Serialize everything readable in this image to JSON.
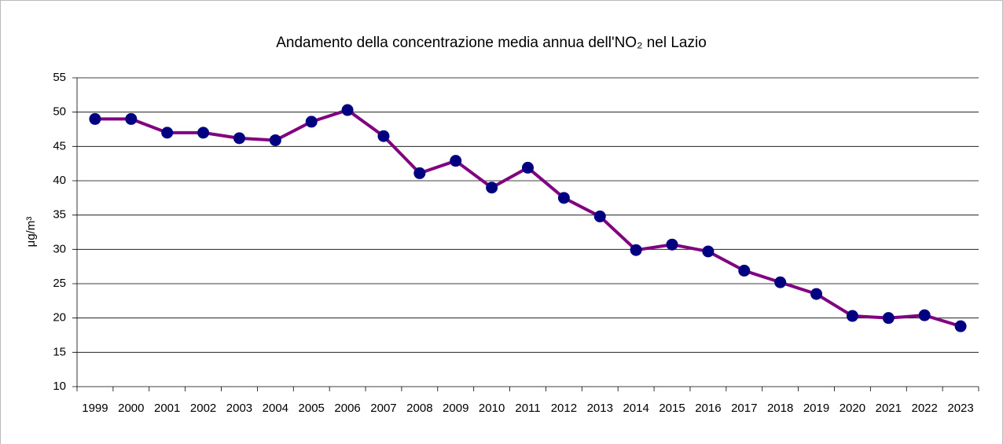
{
  "chart_data": {
    "type": "line",
    "title": "Andamento della concentrazione media annua dell'NO₂ nel Lazio",
    "y_label": "μg/m³",
    "categories": [
      "1999",
      "2000",
      "2001",
      "2002",
      "2003",
      "2004",
      "2005",
      "2006",
      "2007",
      "2008",
      "2009",
      "2010",
      "2011",
      "2012",
      "2013",
      "2014",
      "2015",
      "2016",
      "2017",
      "2018",
      "2019",
      "2020",
      "2021",
      "2022",
      "2023"
    ],
    "values": [
      49,
      49,
      47,
      47,
      46.2,
      45.9,
      48.6,
      50.3,
      46.5,
      41.1,
      42.9,
      39,
      41.9,
      37.5,
      34.8,
      29.9,
      30.7,
      29.7,
      26.9,
      25.2,
      23.5,
      20.3,
      20.0,
      20.4,
      18.8
    ],
    "line_color": "#800080",
    "marker_color": "#000080",
    "ylim": [
      10,
      55
    ],
    "yticks": [
      10,
      15,
      20,
      25,
      30,
      35,
      40,
      45,
      50,
      55
    ],
    "grid": true
  }
}
